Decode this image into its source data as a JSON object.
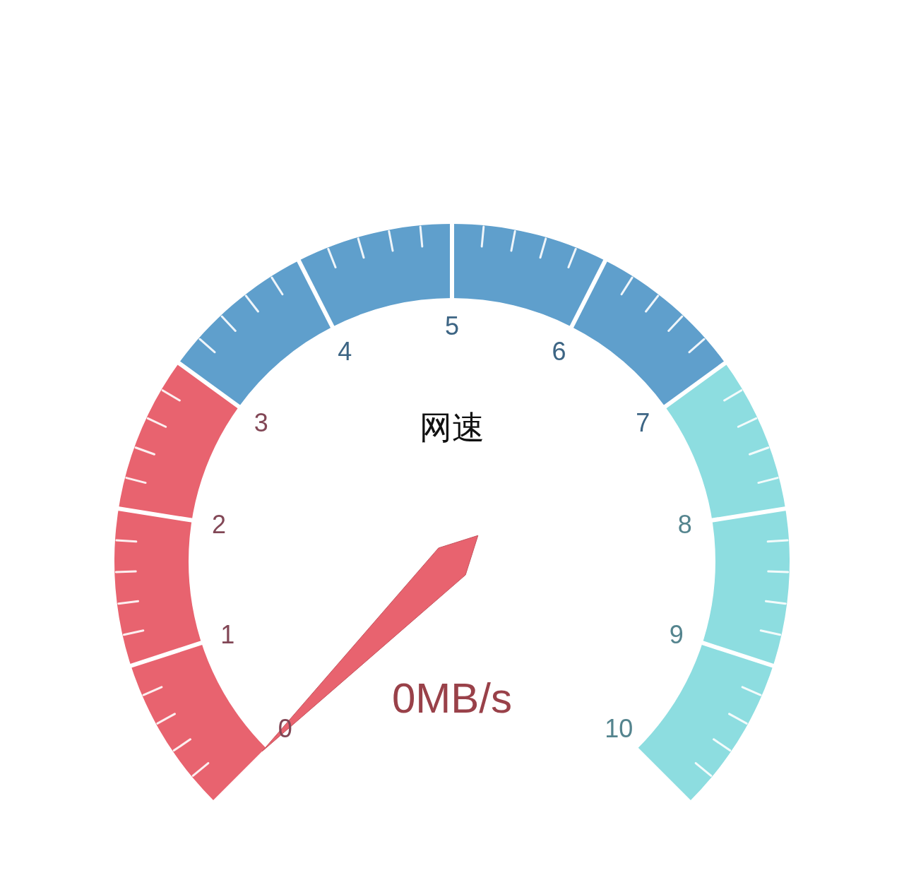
{
  "chart_data": {
    "type": "donut",
    "title": "网速",
    "categories": [
      null,
      null,
      null
    ],
    "values": [
      30,
      40,
      30
    ],
    "colors": [
      "#e8636f",
      "#5f9fcc",
      "#8ddde0"
    ],
    "needle": null,
    "annotations": [
      "0MB/s",
      "0",
      "1",
      "2",
      "3",
      "4",
      "5",
      "6",
      "7",
      "8",
      "9",
      "10"
    ]
  }
}
